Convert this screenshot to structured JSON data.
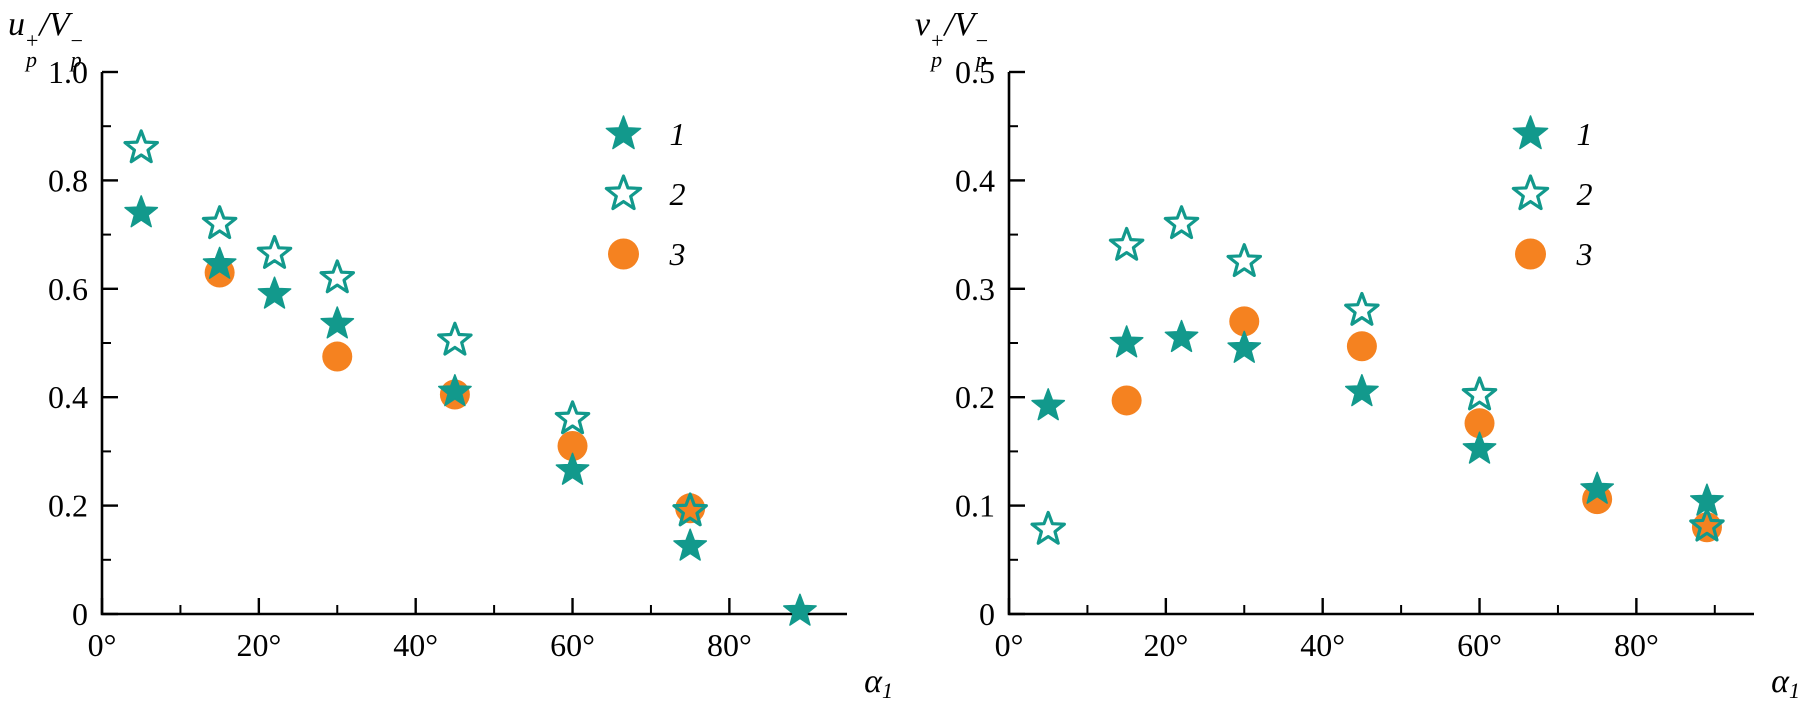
{
  "figure": {
    "background": "#ffffff",
    "axis_color": "#000000",
    "teal": "#12998C",
    "orange": "#F58220"
  },
  "chart_data": [
    {
      "type": "scatter",
      "title_parts": {
        "base": "u",
        "sup": "+",
        "sub": "p",
        "den": "/V",
        "den_sup": "−",
        "den_sub": "p"
      },
      "xlabel_parts": {
        "base": "α",
        "sub": "1"
      },
      "xlim": [
        0,
        95
      ],
      "ylim": [
        0,
        1.0
      ],
      "x_major_ticks": [
        {
          "v": 0,
          "label": "0°"
        },
        {
          "v": 20,
          "label": "20°"
        },
        {
          "v": 40,
          "label": "40°"
        },
        {
          "v": 60,
          "label": "60°"
        },
        {
          "v": 80,
          "label": "80°"
        }
      ],
      "x_minor_ticks": [
        10,
        30,
        50,
        70,
        90
      ],
      "y_major_ticks": [
        {
          "v": 0,
          "label": "0"
        },
        {
          "v": 0.2,
          "label": "0.2"
        },
        {
          "v": 0.4,
          "label": "0.4"
        },
        {
          "v": 0.6,
          "label": "0.6"
        },
        {
          "v": 0.8,
          "label": "0.8"
        },
        {
          "v": 1.0,
          "label": "1.0"
        }
      ],
      "y_minor_ticks": [
        0.1,
        0.3,
        0.5,
        0.7,
        0.9
      ],
      "grid": false,
      "legend_position": "upper-right-inside",
      "series": [
        {
          "name": "1",
          "marker": "star-filled",
          "color": "#12998C",
          "points": [
            [
              5,
              0.74
            ],
            [
              15,
              0.645
            ],
            [
              22,
              0.59
            ],
            [
              30,
              0.535
            ],
            [
              45,
              0.41
            ],
            [
              60,
              0.265
            ],
            [
              75,
              0.125
            ],
            [
              89,
              0.005
            ]
          ]
        },
        {
          "name": "2",
          "marker": "star-open",
          "color": "#12998C",
          "points": [
            [
              5,
              0.86
            ],
            [
              15,
              0.72
            ],
            [
              22,
              0.665
            ],
            [
              30,
              0.62
            ],
            [
              45,
              0.505
            ],
            [
              60,
              0.36
            ],
            [
              75,
              0.19
            ]
          ]
        },
        {
          "name": "3",
          "marker": "circle-filled",
          "color": "#F58220",
          "points": [
            [
              15,
              0.63
            ],
            [
              30,
              0.475
            ],
            [
              45,
              0.405
            ],
            [
              60,
              0.31
            ],
            [
              75,
              0.195
            ]
          ]
        }
      ]
    },
    {
      "type": "scatter",
      "title_parts": {
        "base": "v",
        "sup": "+",
        "sub": "p",
        "den": "/V",
        "den_sup": "−",
        "den_sub": "p"
      },
      "xlabel_parts": {
        "base": "α",
        "sub": "1"
      },
      "xlim": [
        0,
        95
      ],
      "ylim": [
        0,
        0.5
      ],
      "x_major_ticks": [
        {
          "v": 0,
          "label": "0°"
        },
        {
          "v": 20,
          "label": "20°"
        },
        {
          "v": 40,
          "label": "40°"
        },
        {
          "v": 60,
          "label": "60°"
        },
        {
          "v": 80,
          "label": "80°"
        }
      ],
      "x_minor_ticks": [
        10,
        30,
        50,
        70,
        90
      ],
      "y_major_ticks": [
        {
          "v": 0,
          "label": "0"
        },
        {
          "v": 0.1,
          "label": "0.1"
        },
        {
          "v": 0.2,
          "label": "0.2"
        },
        {
          "v": 0.3,
          "label": "0.3"
        },
        {
          "v": 0.4,
          "label": "0.4"
        },
        {
          "v": 0.5,
          "label": "0.5"
        }
      ],
      "y_minor_ticks": [
        0.05,
        0.15,
        0.25,
        0.35,
        0.45
      ],
      "grid": false,
      "legend_position": "upper-right-inside",
      "series": [
        {
          "name": "1",
          "marker": "star-filled",
          "color": "#12998C",
          "points": [
            [
              5,
              0.192
            ],
            [
              15,
              0.25
            ],
            [
              22,
              0.255
            ],
            [
              30,
              0.245
            ],
            [
              45,
              0.205
            ],
            [
              60,
              0.152
            ],
            [
              75,
              0.115
            ],
            [
              89,
              0.104
            ]
          ]
        },
        {
          "name": "2",
          "marker": "star-open",
          "color": "#12998C",
          "points": [
            [
              5,
              0.078
            ],
            [
              15,
              0.34
            ],
            [
              22,
              0.36
            ],
            [
              30,
              0.325
            ],
            [
              45,
              0.28
            ],
            [
              60,
              0.202
            ],
            [
              89,
              0.081
            ]
          ]
        },
        {
          "name": "3",
          "marker": "circle-filled",
          "color": "#F58220",
          "points": [
            [
              15,
              0.197
            ],
            [
              30,
              0.27
            ],
            [
              45,
              0.247
            ],
            [
              60,
              0.176
            ],
            [
              75,
              0.106
            ],
            [
              89,
              0.08
            ]
          ]
        }
      ]
    }
  ]
}
